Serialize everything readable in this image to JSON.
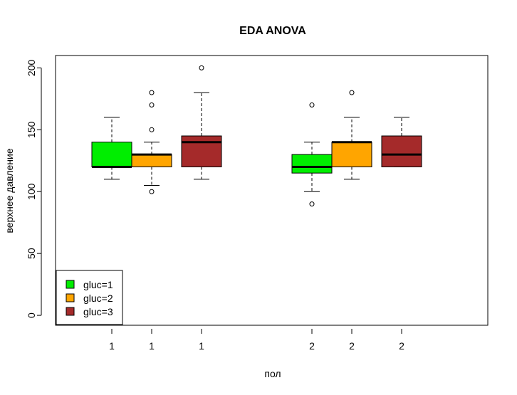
{
  "chart_data": {
    "type": "boxplot",
    "title": "EDA ANOVA",
    "xlabel": "пол",
    "ylabel": "верхнее давление",
    "ylim": [
      -8,
      210
    ],
    "y_ticks": [
      0,
      50,
      100,
      150,
      200
    ],
    "x_tick_labels": [
      "1",
      "1",
      "1",
      "2",
      "2",
      "2"
    ],
    "grid": false,
    "legend": {
      "position": "bottom-left",
      "entries": [
        {
          "label": "gluc=1",
          "color": "#00ee00"
        },
        {
          "label": "gluc=2",
          "color": "#ffa500"
        },
        {
          "label": "gluc=3",
          "color": "#a52a2a"
        }
      ]
    },
    "boxes": [
      {
        "group": "1",
        "gluc": "1",
        "color": "#00ee00",
        "whisker_low": 110,
        "q1": 120,
        "median": 120,
        "q3": 140,
        "whisker_high": 160,
        "outliers": []
      },
      {
        "group": "1",
        "gluc": "2",
        "color": "#ffa500",
        "whisker_low": 105,
        "q1": 120,
        "median": 130,
        "q3": 130,
        "whisker_high": 140,
        "outliers": [
          100,
          150,
          170,
          180
        ]
      },
      {
        "group": "1",
        "gluc": "3",
        "color": "#a52a2a",
        "whisker_low": 110,
        "q1": 120,
        "median": 140,
        "q3": 145,
        "whisker_high": 180,
        "outliers": [
          200
        ]
      },
      {
        "group": "2",
        "gluc": "1",
        "color": "#00ee00",
        "whisker_low": 100,
        "q1": 115,
        "median": 120,
        "q3": 130,
        "whisker_high": 140,
        "outliers": [
          90,
          170
        ]
      },
      {
        "group": "2",
        "gluc": "2",
        "color": "#ffa500",
        "whisker_low": 110,
        "q1": 120,
        "median": 140,
        "q3": 140,
        "whisker_high": 160,
        "outliers": [
          180
        ]
      },
      {
        "group": "2",
        "gluc": "3",
        "color": "#a52a2a",
        "whisker_low": 120,
        "q1": 120,
        "median": 130,
        "q3": 145,
        "whisker_high": 160,
        "outliers": []
      }
    ]
  }
}
